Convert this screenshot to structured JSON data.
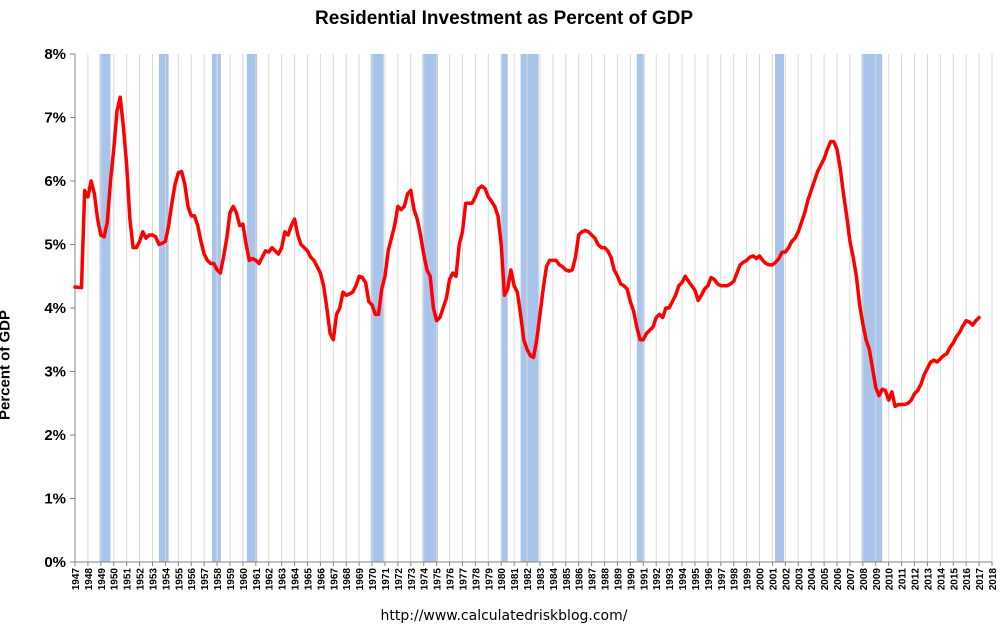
{
  "chart_data": {
    "type": "line",
    "title": "Residential Investment as Percent of GDP",
    "ylabel": "Percent of GDP",
    "xlabel": "",
    "source": "http://www.calculatedriskblog.com/",
    "ylim": [
      0,
      8
    ],
    "xlim": [
      1947,
      2018
    ],
    "y_ticks": [
      "0%",
      "1%",
      "2%",
      "3%",
      "4%",
      "5%",
      "6%",
      "7%",
      "8%"
    ],
    "x_ticks": [
      "1947",
      "1948",
      "1949",
      "1950",
      "1951",
      "1952",
      "1953",
      "1954",
      "1955",
      "1956",
      "1957",
      "1958",
      "1959",
      "1960",
      "1961",
      "1962",
      "1963",
      "1964",
      "1965",
      "1966",
      "1967",
      "1968",
      "1969",
      "1970",
      "1971",
      "1972",
      "1973",
      "1974",
      "1975",
      "1976",
      "1977",
      "1978",
      "1979",
      "1980",
      "1981",
      "1982",
      "1983",
      "1984",
      "1985",
      "1986",
      "1987",
      "1988",
      "1989",
      "1990",
      "1991",
      "1992",
      "1993",
      "1994",
      "1995",
      "1996",
      "1997",
      "1998",
      "1999",
      "2000",
      "2001",
      "2002",
      "2003",
      "2004",
      "2005",
      "2006",
      "2007",
      "2008",
      "2009",
      "2010",
      "2011",
      "2012",
      "2013",
      "2014",
      "2015",
      "2016",
      "2017",
      "2018"
    ],
    "grid": "vertical",
    "legend": "none",
    "colors": {
      "line": "#ff0000",
      "recession": "#a9c4ea",
      "grid": "#d9d9d9",
      "axis": "#868686"
    },
    "recessions": [
      [
        1948.9,
        1949.75
      ],
      [
        1953.5,
        1954.25
      ],
      [
        1957.6,
        1958.3
      ],
      [
        1960.3,
        1961.1
      ],
      [
        1969.9,
        1970.9
      ],
      [
        1973.9,
        1975.1
      ],
      [
        1980.0,
        1980.5
      ],
      [
        1981.5,
        1982.9
      ],
      [
        1990.5,
        1991.1
      ],
      [
        2001.2,
        2001.9
      ],
      [
        2007.9,
        2009.5
      ]
    ],
    "series": [
      {
        "values": [
          [
            1947.0,
            4.33
          ],
          [
            1947.5,
            4.32
          ],
          [
            1947.75,
            5.85
          ],
          [
            1948.0,
            5.75
          ],
          [
            1948.25,
            6.0
          ],
          [
            1948.5,
            5.8
          ],
          [
            1948.75,
            5.4
          ],
          [
            1949.0,
            5.15
          ],
          [
            1949.25,
            5.12
          ],
          [
            1949.5,
            5.35
          ],
          [
            1949.75,
            6.0
          ],
          [
            1950.0,
            6.5
          ],
          [
            1950.25,
            7.1
          ],
          [
            1950.5,
            7.32
          ],
          [
            1950.75,
            6.85
          ],
          [
            1951.0,
            6.25
          ],
          [
            1951.25,
            5.4
          ],
          [
            1951.5,
            4.95
          ],
          [
            1951.75,
            4.95
          ],
          [
            1952.0,
            5.05
          ],
          [
            1952.25,
            5.2
          ],
          [
            1952.5,
            5.1
          ],
          [
            1952.75,
            5.15
          ],
          [
            1953.0,
            5.15
          ],
          [
            1953.25,
            5.12
          ],
          [
            1953.5,
            5.0
          ],
          [
            1953.75,
            5.02
          ],
          [
            1954.0,
            5.05
          ],
          [
            1954.25,
            5.3
          ],
          [
            1954.5,
            5.65
          ],
          [
            1954.75,
            5.95
          ],
          [
            1955.0,
            6.13
          ],
          [
            1955.25,
            6.15
          ],
          [
            1955.5,
            5.95
          ],
          [
            1955.75,
            5.6
          ],
          [
            1956.0,
            5.45
          ],
          [
            1956.25,
            5.45
          ],
          [
            1956.5,
            5.3
          ],
          [
            1956.75,
            5.05
          ],
          [
            1957.0,
            4.85
          ],
          [
            1957.25,
            4.75
          ],
          [
            1957.5,
            4.7
          ],
          [
            1957.75,
            4.7
          ],
          [
            1958.0,
            4.6
          ],
          [
            1958.25,
            4.55
          ],
          [
            1958.5,
            4.8
          ],
          [
            1958.75,
            5.1
          ],
          [
            1959.0,
            5.5
          ],
          [
            1959.25,
            5.6
          ],
          [
            1959.5,
            5.5
          ],
          [
            1959.75,
            5.3
          ],
          [
            1960.0,
            5.32
          ],
          [
            1960.25,
            5.0
          ],
          [
            1960.5,
            4.75
          ],
          [
            1960.75,
            4.78
          ],
          [
            1961.0,
            4.75
          ],
          [
            1961.25,
            4.7
          ],
          [
            1961.5,
            4.8
          ],
          [
            1961.75,
            4.9
          ],
          [
            1962.0,
            4.88
          ],
          [
            1962.25,
            4.95
          ],
          [
            1962.5,
            4.9
          ],
          [
            1962.75,
            4.85
          ],
          [
            1963.0,
            4.95
          ],
          [
            1963.25,
            5.2
          ],
          [
            1963.5,
            5.15
          ],
          [
            1963.75,
            5.3
          ],
          [
            1964.0,
            5.4
          ],
          [
            1964.25,
            5.15
          ],
          [
            1964.5,
            5.0
          ],
          [
            1964.75,
            4.95
          ],
          [
            1965.0,
            4.9
          ],
          [
            1965.25,
            4.8
          ],
          [
            1965.5,
            4.75
          ],
          [
            1965.75,
            4.65
          ],
          [
            1966.0,
            4.55
          ],
          [
            1966.25,
            4.35
          ],
          [
            1966.5,
            4.0
          ],
          [
            1966.75,
            3.6
          ],
          [
            1967.0,
            3.5
          ],
          [
            1967.25,
            3.9
          ],
          [
            1967.5,
            4.0
          ],
          [
            1967.75,
            4.25
          ],
          [
            1968.0,
            4.2
          ],
          [
            1968.25,
            4.22
          ],
          [
            1968.5,
            4.25
          ],
          [
            1968.75,
            4.35
          ],
          [
            1969.0,
            4.5
          ],
          [
            1969.25,
            4.48
          ],
          [
            1969.5,
            4.4
          ],
          [
            1969.75,
            4.1
          ],
          [
            1970.0,
            4.05
          ],
          [
            1970.25,
            3.9
          ],
          [
            1970.5,
            3.9
          ],
          [
            1970.75,
            4.3
          ],
          [
            1971.0,
            4.5
          ],
          [
            1971.25,
            4.9
          ],
          [
            1971.5,
            5.1
          ],
          [
            1971.75,
            5.3
          ],
          [
            1972.0,
            5.6
          ],
          [
            1972.25,
            5.55
          ],
          [
            1972.5,
            5.6
          ],
          [
            1972.75,
            5.8
          ],
          [
            1973.0,
            5.85
          ],
          [
            1973.25,
            5.55
          ],
          [
            1973.5,
            5.4
          ],
          [
            1973.75,
            5.15
          ],
          [
            1974.0,
            4.85
          ],
          [
            1974.25,
            4.6
          ],
          [
            1974.5,
            4.5
          ],
          [
            1974.75,
            4.0
          ],
          [
            1975.0,
            3.8
          ],
          [
            1975.25,
            3.85
          ],
          [
            1975.5,
            4.0
          ],
          [
            1975.75,
            4.15
          ],
          [
            1976.0,
            4.45
          ],
          [
            1976.25,
            4.55
          ],
          [
            1976.5,
            4.5
          ],
          [
            1976.75,
            5.0
          ],
          [
            1977.0,
            5.2
          ],
          [
            1977.25,
            5.65
          ],
          [
            1977.5,
            5.65
          ],
          [
            1977.75,
            5.65
          ],
          [
            1978.0,
            5.75
          ],
          [
            1978.25,
            5.88
          ],
          [
            1978.5,
            5.92
          ],
          [
            1978.75,
            5.88
          ],
          [
            1979.0,
            5.75
          ],
          [
            1979.25,
            5.68
          ],
          [
            1979.5,
            5.6
          ],
          [
            1979.75,
            5.45
          ],
          [
            1980.0,
            5.0
          ],
          [
            1980.25,
            4.2
          ],
          [
            1980.5,
            4.3
          ],
          [
            1980.75,
            4.6
          ],
          [
            1981.0,
            4.35
          ],
          [
            1981.25,
            4.25
          ],
          [
            1981.5,
            3.9
          ],
          [
            1981.75,
            3.5
          ],
          [
            1982.0,
            3.35
          ],
          [
            1982.25,
            3.25
          ],
          [
            1982.5,
            3.22
          ],
          [
            1982.75,
            3.5
          ],
          [
            1983.0,
            3.9
          ],
          [
            1983.25,
            4.3
          ],
          [
            1983.5,
            4.65
          ],
          [
            1983.75,
            4.75
          ],
          [
            1984.0,
            4.75
          ],
          [
            1984.25,
            4.75
          ],
          [
            1984.5,
            4.68
          ],
          [
            1984.75,
            4.65
          ],
          [
            1985.0,
            4.6
          ],
          [
            1985.25,
            4.58
          ],
          [
            1985.5,
            4.6
          ],
          [
            1985.75,
            4.8
          ],
          [
            1986.0,
            5.15
          ],
          [
            1986.25,
            5.2
          ],
          [
            1986.5,
            5.22
          ],
          [
            1986.75,
            5.2
          ],
          [
            1987.0,
            5.15
          ],
          [
            1987.25,
            5.1
          ],
          [
            1987.5,
            5.0
          ],
          [
            1987.75,
            4.95
          ],
          [
            1988.0,
            4.95
          ],
          [
            1988.25,
            4.9
          ],
          [
            1988.5,
            4.8
          ],
          [
            1988.75,
            4.6
          ],
          [
            1989.0,
            4.5
          ],
          [
            1989.25,
            4.38
          ],
          [
            1989.5,
            4.35
          ],
          [
            1989.75,
            4.3
          ],
          [
            1990.0,
            4.1
          ],
          [
            1990.25,
            3.95
          ],
          [
            1990.5,
            3.7
          ],
          [
            1990.75,
            3.5
          ],
          [
            1991.0,
            3.5
          ],
          [
            1991.25,
            3.6
          ],
          [
            1991.5,
            3.65
          ],
          [
            1991.75,
            3.7
          ],
          [
            1992.0,
            3.85
          ],
          [
            1992.25,
            3.9
          ],
          [
            1992.5,
            3.85
          ],
          [
            1992.75,
            4.0
          ],
          [
            1993.0,
            4.0
          ],
          [
            1993.25,
            4.1
          ],
          [
            1993.5,
            4.2
          ],
          [
            1993.75,
            4.35
          ],
          [
            1994.0,
            4.4
          ],
          [
            1994.25,
            4.5
          ],
          [
            1994.5,
            4.42
          ],
          [
            1994.75,
            4.35
          ],
          [
            1995.0,
            4.28
          ],
          [
            1995.25,
            4.12
          ],
          [
            1995.5,
            4.2
          ],
          [
            1995.75,
            4.3
          ],
          [
            1996.0,
            4.35
          ],
          [
            1996.25,
            4.48
          ],
          [
            1996.5,
            4.45
          ],
          [
            1996.75,
            4.38
          ],
          [
            1997.0,
            4.35
          ],
          [
            1997.25,
            4.35
          ],
          [
            1997.5,
            4.35
          ],
          [
            1997.75,
            4.38
          ],
          [
            1998.0,
            4.42
          ],
          [
            1998.25,
            4.55
          ],
          [
            1998.5,
            4.68
          ],
          [
            1998.75,
            4.72
          ],
          [
            1999.0,
            4.75
          ],
          [
            1999.25,
            4.8
          ],
          [
            1999.5,
            4.82
          ],
          [
            1999.75,
            4.78
          ],
          [
            2000.0,
            4.82
          ],
          [
            2000.25,
            4.75
          ],
          [
            2000.5,
            4.7
          ],
          [
            2000.75,
            4.68
          ],
          [
            2001.0,
            4.68
          ],
          [
            2001.25,
            4.72
          ],
          [
            2001.5,
            4.78
          ],
          [
            2001.75,
            4.88
          ],
          [
            2002.0,
            4.88
          ],
          [
            2002.25,
            4.95
          ],
          [
            2002.5,
            5.05
          ],
          [
            2002.75,
            5.1
          ],
          [
            2003.0,
            5.2
          ],
          [
            2003.25,
            5.35
          ],
          [
            2003.5,
            5.5
          ],
          [
            2003.75,
            5.7
          ],
          [
            2004.0,
            5.85
          ],
          [
            2004.25,
            6.0
          ],
          [
            2004.5,
            6.15
          ],
          [
            2004.75,
            6.25
          ],
          [
            2005.0,
            6.35
          ],
          [
            2005.25,
            6.5
          ],
          [
            2005.5,
            6.62
          ],
          [
            2005.75,
            6.62
          ],
          [
            2006.0,
            6.5
          ],
          [
            2006.25,
            6.2
          ],
          [
            2006.5,
            5.8
          ],
          [
            2006.75,
            5.45
          ],
          [
            2007.0,
            5.05
          ],
          [
            2007.25,
            4.8
          ],
          [
            2007.5,
            4.5
          ],
          [
            2007.75,
            4.05
          ],
          [
            2008.0,
            3.75
          ],
          [
            2008.25,
            3.5
          ],
          [
            2008.5,
            3.35
          ],
          [
            2008.75,
            3.05
          ],
          [
            2009.0,
            2.75
          ],
          [
            2009.25,
            2.62
          ],
          [
            2009.5,
            2.72
          ],
          [
            2009.75,
            2.7
          ],
          [
            2010.0,
            2.55
          ],
          [
            2010.25,
            2.68
          ],
          [
            2010.5,
            2.45
          ],
          [
            2010.75,
            2.48
          ],
          [
            2011.0,
            2.48
          ],
          [
            2011.25,
            2.48
          ],
          [
            2011.5,
            2.5
          ],
          [
            2011.75,
            2.55
          ],
          [
            2012.0,
            2.65
          ],
          [
            2012.25,
            2.7
          ],
          [
            2012.5,
            2.8
          ],
          [
            2012.75,
            2.95
          ],
          [
            2013.0,
            3.05
          ],
          [
            2013.25,
            3.15
          ],
          [
            2013.5,
            3.18
          ],
          [
            2013.75,
            3.15
          ],
          [
            2014.0,
            3.2
          ],
          [
            2014.25,
            3.25
          ],
          [
            2014.5,
            3.28
          ],
          [
            2014.75,
            3.38
          ],
          [
            2015.0,
            3.45
          ],
          [
            2015.25,
            3.55
          ],
          [
            2015.5,
            3.62
          ],
          [
            2015.75,
            3.72
          ],
          [
            2016.0,
            3.8
          ],
          [
            2016.25,
            3.78
          ],
          [
            2016.5,
            3.73
          ],
          [
            2016.75,
            3.8
          ],
          [
            2017.0,
            3.85
          ]
        ]
      }
    ]
  }
}
